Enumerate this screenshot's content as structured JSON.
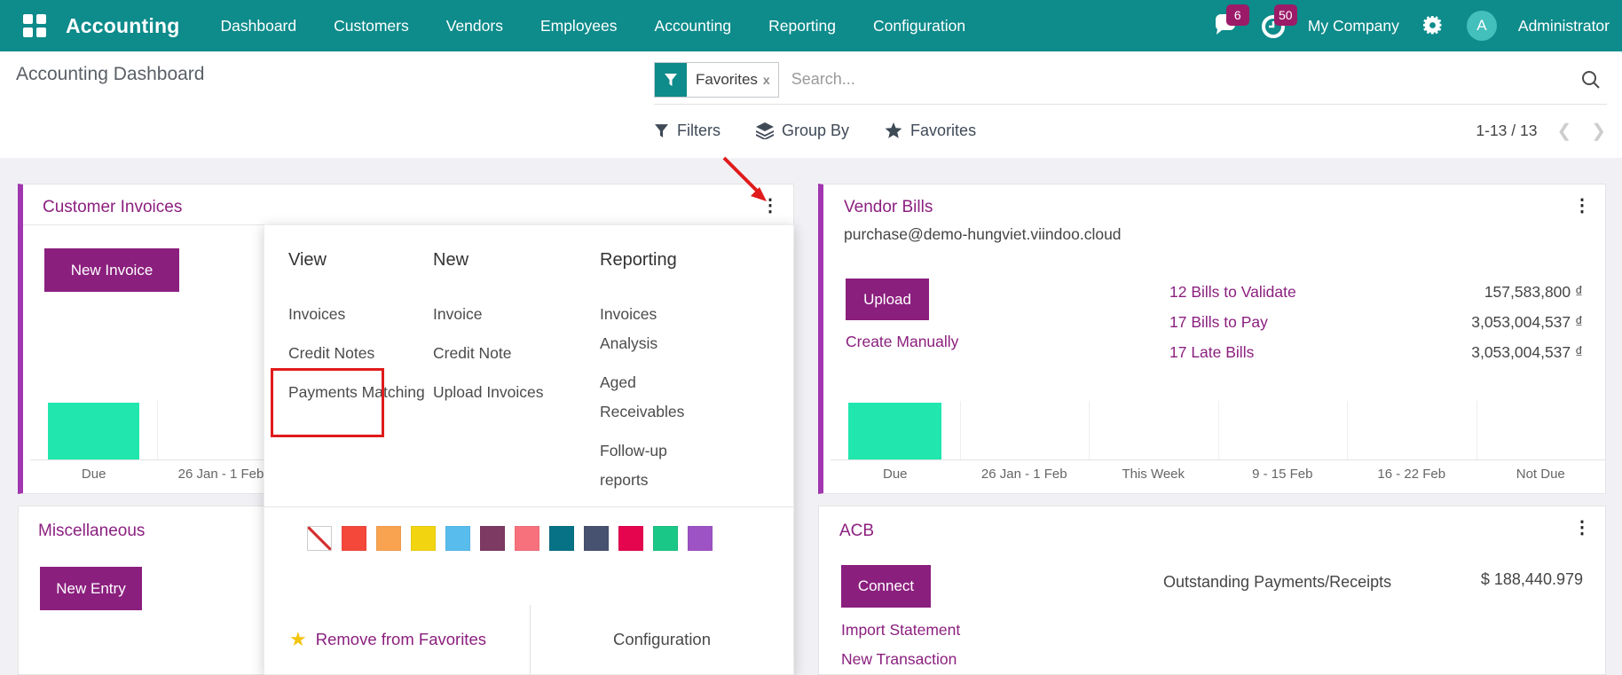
{
  "topbar": {
    "brand": "Accounting",
    "menus": [
      "Dashboard",
      "Customers",
      "Vendors",
      "Employees",
      "Accounting",
      "Reporting",
      "Configuration"
    ],
    "messages_badge": "6",
    "activities_badge": "50",
    "company": "My Company",
    "user_initial": "A",
    "user_name": "Administrator"
  },
  "control_panel": {
    "title": "Accounting Dashboard",
    "facet_label": "Favorites",
    "facet_remove": "x",
    "search_placeholder": "Search...",
    "filters_label": "Filters",
    "group_by_label": "Group By",
    "favorites_label": "Favorites",
    "pager_count": "1-13 / 13",
    "pager_prev": "❮",
    "pager_next": "❯"
  },
  "cards": {
    "customer_invoices": {
      "title": "Customer Invoices",
      "button": "New Invoice"
    },
    "vendor_bills": {
      "title": "Vendor Bills",
      "subtitle": "purchase@demo-hungviet.viindoo.cloud",
      "button": "Upload",
      "link": "Create Manually",
      "stats": [
        {
          "label": "12 Bills to Validate",
          "amount": "157,583,800 ₫"
        },
        {
          "label": "17 Bills to Pay",
          "amount": "3,053,004,537 ₫"
        },
        {
          "label": "17 Late Bills",
          "amount": "3,053,004,537 ₫"
        }
      ]
    },
    "miscellaneous": {
      "title": "Miscellaneous",
      "button": "New Entry"
    },
    "acb": {
      "title": "ACB",
      "button": "Connect",
      "link_import": "Import Statement",
      "link_new": "New Transaction",
      "stat_label": "Outstanding Payments/Receipts",
      "stat_amount": "$ 188,440.979"
    }
  },
  "chart_data": {
    "type": "bar",
    "categories": [
      "Due",
      "26 Jan - 1 Feb",
      "This Week",
      "9 - 15 Feb",
      "16 - 22 Feb",
      "Not Due"
    ],
    "values": [
      1,
      0,
      0,
      0,
      0,
      0
    ],
    "bar_color": "#21e7ae",
    "title": "",
    "xlabel": "",
    "ylabel": "",
    "ylim": [
      0,
      1
    ],
    "grid": "vertical-separators",
    "legend": "none"
  },
  "dropdown": {
    "columns": [
      {
        "header": "View",
        "items": [
          "Invoices",
          "Credit Notes",
          "Payments Matching"
        ]
      },
      {
        "header": "New",
        "items": [
          "Invoice",
          "Credit Note",
          "Upload Invoices"
        ]
      },
      {
        "header": "Reporting",
        "items": [
          "Invoices Analysis",
          "Aged Receivables",
          "Follow-up reports"
        ]
      }
    ],
    "colors": [
      "none",
      "#f4483b",
      "#f9a351",
      "#f2d411",
      "#58bdec",
      "#7d3a63",
      "#f7717d",
      "#077186",
      "#475170",
      "#e5054f",
      "#1bc786",
      "#9d53c4"
    ],
    "remove_favorites": "Remove from Favorites",
    "configuration": "Configuration"
  },
  "icons": {
    "apps": "grid",
    "messages": "chat-bubble",
    "activities": "clock",
    "settings": "gears",
    "search": "magnifier",
    "facet_filter": "funnel",
    "filters": "funnel",
    "group_by": "layers",
    "favorites": "star",
    "card_menu": "kebab-vertical",
    "annotation": "red-arrow-and-box"
  },
  "theme": {
    "topbar_teal": "#0e8b8b",
    "primary_purple": "#8b1f7e",
    "favorite_accent": "#a136b0",
    "badge_magenta": "#9b1b68",
    "bar_mint": "#21e7ae",
    "content_bg": "#f1f1f5",
    "annotation_red": "#e01b1b"
  }
}
